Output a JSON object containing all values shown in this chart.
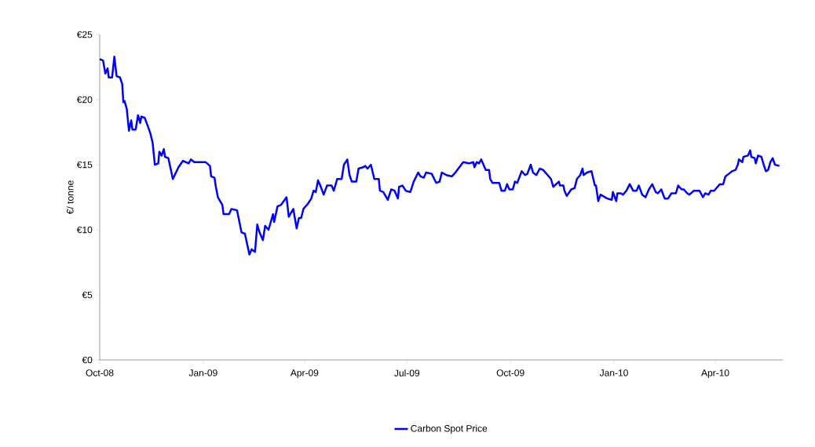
{
  "chart_data": {
    "type": "line",
    "ylabel": "€/ tonne",
    "legend": "bottom",
    "marker": "none",
    "line_style": "solid",
    "grid": false,
    "xlim": [
      "2008-10-01",
      "2010-05-31"
    ],
    "xticks": [
      {
        "value": "2008-10-01",
        "label": "Oct-08"
      },
      {
        "value": "2009-01-01",
        "label": "Jan-09"
      },
      {
        "value": "2009-04-01",
        "label": "Apr-09"
      },
      {
        "value": "2009-07-01",
        "label": "Jul-09"
      },
      {
        "value": "2009-10-01",
        "label": "Oct-09"
      },
      {
        "value": "2010-01-01",
        "label": "Jan-10"
      },
      {
        "value": "2010-04-01",
        "label": "Apr-10"
      }
    ],
    "ylim": [
      0,
      25
    ],
    "yticks": [
      {
        "value": 0,
        "label": "€0"
      },
      {
        "value": 5,
        "label": "€5"
      },
      {
        "value": 10,
        "label": "€10"
      },
      {
        "value": 15,
        "label": "€15"
      },
      {
        "value": 20,
        "label": "€20"
      },
      {
        "value": 25,
        "label": "€25"
      }
    ],
    "x": [
      "2008-10-01",
      "2008-10-04",
      "2008-10-06",
      "2008-10-08",
      "2008-10-09",
      "2008-10-12",
      "2008-10-14",
      "2008-10-16",
      "2008-10-19",
      "2008-10-21",
      "2008-10-22",
      "2008-10-23",
      "2008-10-25",
      "2008-10-27",
      "2008-10-29",
      "2008-10-30",
      "2008-11-02",
      "2008-11-04",
      "2008-11-06",
      "2008-11-07",
      "2008-11-10",
      "2008-11-13",
      "2008-11-15",
      "2008-11-17",
      "2008-11-19",
      "2008-11-22",
      "2008-11-23",
      "2008-11-25",
      "2008-11-27",
      "2008-11-28",
      "2008-12-01",
      "2008-12-05",
      "2008-12-10",
      "2008-12-14",
      "2008-12-19",
      "2008-12-21",
      "2008-12-24",
      "2009-01-03",
      "2009-01-07",
      "2009-01-08",
      "2009-01-11",
      "2009-01-12",
      "2009-01-14",
      "2009-01-18",
      "2009-01-19",
      "2009-01-24",
      "2009-01-26",
      "2009-01-31",
      "2009-02-04",
      "2009-02-07",
      "2009-02-11",
      "2009-02-13",
      "2009-02-16",
      "2009-02-18",
      "2009-02-20",
      "2009-02-23",
      "2009-02-25",
      "2009-02-28",
      "2009-03-04",
      "2009-03-05",
      "2009-03-08",
      "2009-03-11",
      "2009-03-16",
      "2009-03-18",
      "2009-03-22",
      "2009-03-25",
      "2009-03-27",
      "2009-03-29",
      "2009-03-31",
      "2009-04-04",
      "2009-04-07",
      "2009-04-09",
      "2009-04-11",
      "2009-04-13",
      "2009-04-15",
      "2009-04-18",
      "2009-04-21",
      "2009-04-25",
      "2009-04-27",
      "2009-04-30",
      "2009-05-04",
      "2009-05-06",
      "2009-05-09",
      "2009-05-11",
      "2009-05-13",
      "2009-05-17",
      "2009-05-19",
      "2009-05-23",
      "2009-05-25",
      "2009-05-27",
      "2009-05-30",
      "2009-06-02",
      "2009-06-06",
      "2009-06-07",
      "2009-06-10",
      "2009-06-14",
      "2009-06-17",
      "2009-06-20",
      "2009-06-23",
      "2009-06-24",
      "2009-06-27",
      "2009-06-30",
      "2009-07-04",
      "2009-07-07",
      "2009-07-11",
      "2009-07-13",
      "2009-07-16",
      "2009-07-18",
      "2009-07-23",
      "2009-07-27",
      "2009-07-30",
      "2009-08-01",
      "2009-08-05",
      "2009-08-10",
      "2009-08-13",
      "2009-08-20",
      "2009-08-25",
      "2009-08-29",
      "2009-08-30",
      "2009-09-01",
      "2009-09-03",
      "2009-09-05",
      "2009-09-09",
      "2009-09-12",
      "2009-09-13",
      "2009-09-15",
      "2009-09-21",
      "2009-09-23",
      "2009-09-26",
      "2009-09-28",
      "2009-09-30",
      "2009-10-03",
      "2009-10-05",
      "2009-10-07",
      "2009-10-11",
      "2009-10-14",
      "2009-10-16",
      "2009-10-19",
      "2009-10-21",
      "2009-10-24",
      "2009-10-27",
      "2009-10-30",
      "2009-11-03",
      "2009-11-06",
      "2009-11-08",
      "2009-11-13",
      "2009-11-14",
      "2009-11-17",
      "2009-11-18",
      "2009-11-20",
      "2009-11-24",
      "2009-11-27",
      "2009-11-29",
      "2009-12-02",
      "2009-12-04",
      "2009-12-05",
      "2009-12-08",
      "2009-12-12",
      "2009-12-15",
      "2009-12-16",
      "2009-12-18",
      "2009-12-20",
      "2009-12-22",
      "2009-12-26",
      "2009-12-30",
      "2009-12-31",
      "2010-01-03",
      "2010-01-04",
      "2010-01-07",
      "2010-01-09",
      "2010-01-12",
      "2010-01-15",
      "2010-01-18",
      "2010-01-21",
      "2010-01-23",
      "2010-01-26",
      "2010-01-29",
      "2010-02-01",
      "2010-02-04",
      "2010-02-07",
      "2010-02-09",
      "2010-02-12",
      "2010-02-15",
      "2010-02-18",
      "2010-02-21",
      "2010-02-25",
      "2010-02-27",
      "2010-03-02",
      "2010-03-04",
      "2010-03-07",
      "2010-03-09",
      "2010-03-13",
      "2010-03-18",
      "2010-03-21",
      "2010-03-23",
      "2010-03-26",
      "2010-03-28",
      "2010-03-31",
      "2010-04-03",
      "2010-04-05",
      "2010-04-08",
      "2010-04-10",
      "2010-04-13",
      "2010-04-16",
      "2010-04-19",
      "2010-04-21",
      "2010-04-22",
      "2010-04-25",
      "2010-04-26",
      "2010-04-30",
      "2010-05-02",
      "2010-05-03",
      "2010-05-06",
      "2010-05-07",
      "2010-05-09",
      "2010-05-12",
      "2010-05-14",
      "2010-05-16",
      "2010-05-18",
      "2010-05-20",
      "2010-05-22",
      "2010-05-24",
      "2010-05-28"
    ],
    "series": [
      {
        "name": "Carbon Spot Price",
        "color": "#0000ff",
        "values": [
          23.1,
          23.0,
          22.0,
          22.4,
          21.7,
          21.7,
          23.3,
          21.8,
          21.7,
          21.2,
          19.8,
          19.9,
          19.3,
          17.6,
          18.4,
          17.7,
          17.7,
          18.8,
          18.2,
          18.7,
          18.6,
          17.9,
          17.4,
          16.7,
          15.0,
          15.1,
          16.0,
          15.7,
          16.2,
          15.6,
          15.5,
          13.9,
          14.8,
          15.3,
          15.1,
          15.4,
          15.2,
          15.2,
          14.9,
          14.1,
          14.0,
          13.4,
          12.5,
          11.9,
          11.2,
          11.2,
          11.6,
          11.5,
          9.8,
          9.7,
          8.1,
          8.5,
          8.3,
          10.4,
          9.8,
          9.2,
          10.3,
          10.0,
          11.2,
          10.6,
          11.8,
          11.9,
          12.5,
          11.0,
          11.6,
          10.1,
          10.9,
          10.9,
          11.6,
          12.0,
          12.4,
          13.0,
          12.9,
          13.8,
          13.4,
          12.7,
          13.4,
          13.4,
          13.0,
          13.9,
          13.9,
          15.0,
          15.4,
          14.2,
          13.7,
          13.7,
          14.7,
          14.8,
          14.9,
          14.7,
          15.0,
          13.9,
          13.9,
          13.0,
          12.9,
          12.3,
          13.1,
          13.0,
          12.4,
          13.3,
          13.4,
          13.0,
          12.9,
          13.7,
          14.4,
          14.1,
          14.0,
          14.4,
          14.3,
          13.6,
          13.7,
          14.4,
          14.2,
          14.1,
          14.4,
          15.2,
          15.1,
          15.2,
          14.8,
          15.2,
          15.1,
          15.4,
          14.6,
          14.6,
          13.9,
          13.6,
          13.6,
          13.0,
          13.0,
          13.5,
          13.1,
          13.1,
          13.7,
          13.6,
          14.5,
          14.2,
          14.3,
          15.0,
          14.4,
          14.2,
          14.7,
          14.6,
          14.2,
          13.9,
          13.3,
          13.7,
          13.4,
          13.4,
          13.0,
          12.6,
          13.1,
          13.2,
          13.9,
          14.2,
          14.7,
          14.2,
          14.4,
          14.5,
          13.4,
          13.4,
          12.2,
          12.7,
          12.6,
          12.4,
          12.3,
          12.9,
          12.2,
          12.8,
          12.8,
          12.7,
          13.0,
          13.5,
          13.0,
          13.0,
          13.4,
          12.7,
          12.5,
          13.1,
          13.5,
          12.9,
          12.8,
          13.1,
          12.4,
          12.4,
          12.8,
          12.8,
          13.4,
          13.1,
          13.1,
          12.8,
          12.7,
          13.0,
          13.0,
          12.5,
          12.8,
          12.7,
          13.0,
          13.0,
          13.3,
          13.5,
          13.5,
          14.1,
          14.3,
          14.5,
          14.6,
          15.0,
          15.4,
          15.2,
          15.6,
          15.7,
          16.1,
          15.6,
          15.5,
          15.1,
          15.7,
          15.6,
          15.0,
          14.5,
          14.6,
          15.2,
          15.5,
          15.0,
          14.9
        ]
      }
    ]
  }
}
